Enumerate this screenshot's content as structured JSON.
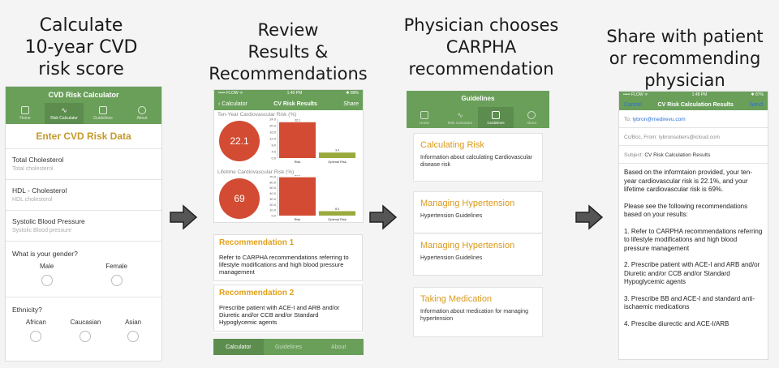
{
  "headings": {
    "step1": "Calculate\n10-year CVD\nrisk score",
    "step2": "Review\nResults &\nRecommendations",
    "step3": "Physician chooses\nCARPHA\nrecommendation",
    "step4": "Share with patient\nor recommending\nphysician"
  },
  "calculator": {
    "title": "CVD Risk Calculator",
    "tabs": [
      {
        "label": "Home",
        "icon": "home-icon"
      },
      {
        "label": "Risk Calculator",
        "icon": "pulse-icon"
      },
      {
        "label": "Guidelines",
        "icon": "book-icon"
      },
      {
        "label": "About",
        "icon": "info-icon"
      }
    ],
    "subtitle": "Enter CVD Risk Data",
    "fields": [
      {
        "label": "Total Cholesterol",
        "placeholder": "Total cholesterol"
      },
      {
        "label": "HDL - Cholesterol",
        "placeholder": "HDL cholesterol"
      },
      {
        "label": "Systolic Blood Pressure",
        "placeholder": "Systolic Blood pressure"
      }
    ],
    "gender_question": "What is your gender?",
    "gender_options": [
      "Male",
      "Female"
    ],
    "ethnicity_question": "Ethnicity?",
    "ethnicity_options": [
      "African",
      "Caucasian",
      "Asian"
    ]
  },
  "results": {
    "status_left": "••••• FLOW ᯤ",
    "status_time": "1:40 PM",
    "status_right": "✱ 89%",
    "back_label": "Calculator",
    "title": "CV Risk Results",
    "share_label": "Share",
    "ten_year_label": "Ten-Year Cardiovascular Risk (%)",
    "ten_year_value": "22.1",
    "lifetime_label": "Lifetime Cardiovascular Risk (%)",
    "lifetime_value": "69",
    "bottom_tabs": [
      "Calculator",
      "Guidelines",
      "About"
    ]
  },
  "recommendations": [
    {
      "title": "Recommendation 1",
      "text": "Refer to CARPHA recommendations referring to lifestyle modifications and high blood pressure management"
    },
    {
      "title": "Recommendation 2",
      "text": "Prescribe patient with ACE-I and ARB and/or Diuretic and/or CCB and/or Standard Hypoglycemic agents"
    }
  ],
  "guidelines": {
    "title": "Guidelines",
    "tabs": [
      {
        "label": "Home",
        "icon": "home-icon"
      },
      {
        "label": "Risk Calculator",
        "icon": "pulse-icon"
      },
      {
        "label": "Guidelines",
        "icon": "book-icon"
      },
      {
        "label": "About",
        "icon": "info-icon"
      }
    ],
    "cards": [
      {
        "title": "Calculating Risk",
        "desc": "Information about calculating Cardiovascular disease risk"
      },
      {
        "title": "Managing Hypertension",
        "desc": "Hypertension Guidelines"
      },
      {
        "title": "Managing Hypertension",
        "desc": "Hypertension Guidelines"
      },
      {
        "title": "Taking Medication",
        "desc": "Information about medication for managing hypertension"
      }
    ]
  },
  "email": {
    "status_left": "••••• FLOW ᯤ",
    "status_time": "1:48 PM",
    "status_right": "✱ 87%",
    "cancel": "Cancel",
    "title": "CV Risk Calculation Results",
    "send": "Send",
    "to_label": "To:",
    "to_value": "lybron@medirevu.com",
    "cc_label": "Cc/Bcc, From:",
    "cc_value": "lybronsobers@icloud.com",
    "subject_label": "Subject:",
    "subject_value": "CV Risk Calculation Results",
    "body": [
      "Based on the informtaion provided, your ten-year cardiovascular risk is 22.1%, and your lifetime cardiovascular risk is 69%.",
      "Please see the following recommendations based on your results:",
      "1. Refer to CARPHA recommendations referring to lifestyle modifications and high blood pressure management",
      "2. Prescribe patient with ACE-I and ARB and/or Diuretic and/or CCB and/or Standard Hypoglycemic agents",
      "3. Prescribe BB and ACE-I and standard anti-ischaemic medications",
      "4. Prescibe diurectic and ACE-I/ARB"
    ]
  },
  "chart_data": [
    {
      "type": "bar",
      "title": "Ten-Year Cardiovascular Risk (%)",
      "categories": [
        "Risk",
        "Optimal Risk"
      ],
      "values": [
        22.1,
        3.4
      ],
      "ylim": [
        0,
        24
      ],
      "ticks": [
        "0.0",
        "4.0",
        "8.0",
        "12.0",
        "16.0",
        "20.0",
        "24.0"
      ],
      "colors": [
        "#d24b32",
        "#9aaa3e"
      ]
    },
    {
      "type": "bar",
      "title": "Lifetime Cardiovascular Risk (%)",
      "categories": [
        "Risk",
        "Optimal Risk"
      ],
      "values": [
        69.0,
        8.0
      ],
      "ylim": [
        0,
        70
      ],
      "ticks": [
        "0.0",
        "10.0",
        "20.0",
        "30.0",
        "40.0",
        "50.0",
        "60.0",
        "70.0"
      ],
      "colors": [
        "#d24b32",
        "#9aaa3e"
      ]
    }
  ],
  "colors": {
    "green": "#6a9f5a",
    "accent": "#c59a2b",
    "risk": "#d24b32"
  }
}
